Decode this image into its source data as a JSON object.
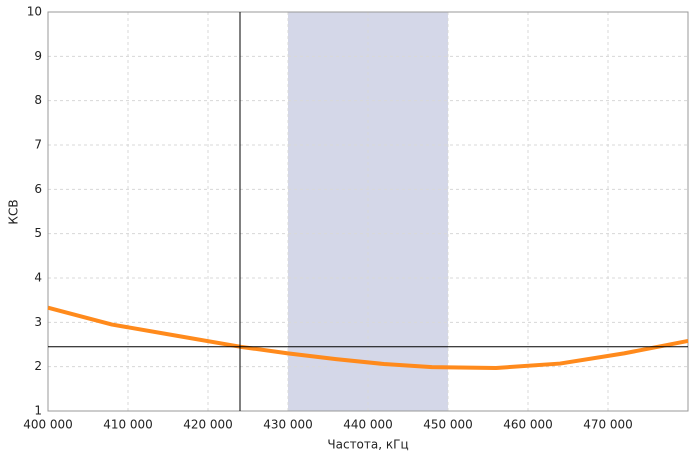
{
  "chart_data": {
    "type": "line",
    "x_label": "Частота, кГц",
    "y_label": "КСВ",
    "x": [
      400000,
      408000,
      416000,
      424000,
      430000,
      436000,
      442000,
      448000,
      456000,
      464000,
      472000,
      480000
    ],
    "series": [
      {
        "name": "КСВ",
        "color": "#ff8a1c",
        "values": [
          3.33,
          2.95,
          2.7,
          2.45,
          2.3,
          2.17,
          2.06,
          1.99,
          1.97,
          2.07,
          2.3,
          2.58
        ]
      }
    ],
    "xlim": [
      400000,
      480000
    ],
    "xticks": [
      {
        "value": 400000,
        "label": "400 000"
      },
      {
        "value": 410000,
        "label": "410 000"
      },
      {
        "value": 420000,
        "label": "420 000"
      },
      {
        "value": 430000,
        "label": "430 000"
      },
      {
        "value": 440000,
        "label": "440 000"
      },
      {
        "value": 450000,
        "label": "450 000"
      },
      {
        "value": 460000,
        "label": "460 000"
      },
      {
        "value": 470000,
        "label": "470 000"
      }
    ],
    "ylim": [
      1,
      10
    ],
    "yticks": [
      1,
      2,
      3,
      4,
      5,
      6,
      7,
      8,
      9,
      10
    ],
    "grid": true,
    "highlight_range": [
      430000,
      450000
    ],
    "highlight_color": "#d4d7e8",
    "cursor": {
      "x": 424000,
      "y": 2.45
    }
  }
}
